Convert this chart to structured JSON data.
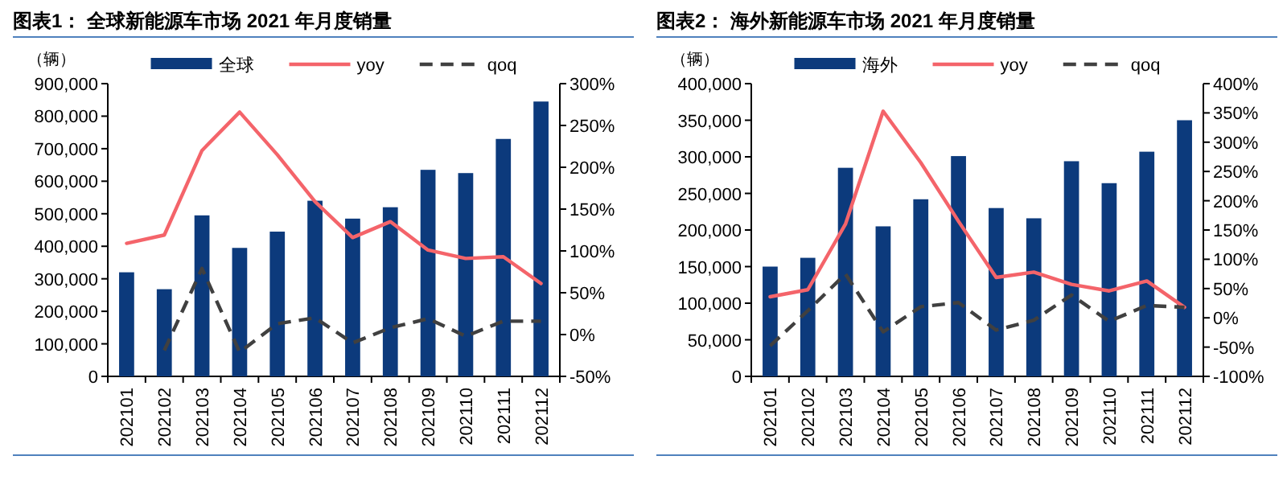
{
  "chart_data": [
    {
      "type": "bar",
      "title": "图表1：  全球新能源车市场 2021 年月度销量",
      "ylabel": "（辆）",
      "legend": "top",
      "categories": [
        "202101",
        "202102",
        "202103",
        "202104",
        "202105",
        "202106",
        "202107",
        "202108",
        "202109",
        "202110",
        "202111",
        "202112"
      ],
      "series": [
        {
          "name": "全球",
          "color": "#0c3a7c",
          "values": [
            320000,
            268000,
            495000,
            395000,
            445000,
            540000,
            485000,
            520000,
            635000,
            625000,
            730000,
            845000
          ]
        },
        {
          "name": "yoy",
          "type": "line",
          "axis": "y2",
          "line_style": "solid",
          "color": "#f4646a",
          "values": [
            109,
            119,
            220,
            266,
            215,
            159,
            116,
            135,
            101,
            91,
            93,
            61
          ]
        },
        {
          "name": "qoq",
          "type": "line",
          "axis": "y2",
          "line_style": "dashed",
          "color": "#404040",
          "values": [
            null,
            -19,
            79,
            -21,
            13,
            20,
            -10,
            8,
            19,
            -2,
            16,
            16
          ]
        }
      ],
      "ylim": [
        0,
        900000
      ],
      "yticks": [
        {
          "value": 0,
          "label": "0"
        },
        {
          "value": 100000,
          "label": "100,000"
        },
        {
          "value": 200000,
          "label": "200,000"
        },
        {
          "value": 300000,
          "label": "300,000"
        },
        {
          "value": 400000,
          "label": "400,000"
        },
        {
          "value": 500000,
          "label": "500,000"
        },
        {
          "value": 600000,
          "label": "600,000"
        },
        {
          "value": 700000,
          "label": "700,000"
        },
        {
          "value": 800000,
          "label": "800,000"
        },
        {
          "value": 900000,
          "label": "900,000"
        }
      ],
      "y2lim": [
        -50,
        300
      ],
      "y2ticks": [
        {
          "value": -50,
          "label": "-50%"
        },
        {
          "value": 0,
          "label": "0%"
        },
        {
          "value": 50,
          "label": "50%"
        },
        {
          "value": 100,
          "label": "100%"
        },
        {
          "value": 150,
          "label": "150%"
        },
        {
          "value": 200,
          "label": "200%"
        },
        {
          "value": 250,
          "label": "250%"
        },
        {
          "value": 300,
          "label": "300%"
        }
      ]
    },
    {
      "type": "bar",
      "title": "图表2：  海外新能源车市场 2021 年月度销量",
      "ylabel": "（辆）",
      "legend": "top",
      "categories": [
        "202101",
        "202102",
        "202103",
        "202104",
        "202105",
        "202106",
        "202107",
        "202108",
        "202109",
        "202110",
        "202111",
        "202112"
      ],
      "series": [
        {
          "name": "海外",
          "color": "#0c3a7c",
          "values": [
            150000,
            162000,
            285000,
            205000,
            242000,
            301000,
            230000,
            216000,
            294000,
            264000,
            307000,
            350000
          ]
        },
        {
          "name": "yoy",
          "type": "line",
          "axis": "y2",
          "line_style": "solid",
          "color": "#f4646a",
          "values": [
            36,
            48,
            160,
            353,
            265,
            165,
            69,
            78,
            57,
            46,
            63,
            18
          ]
        },
        {
          "name": "qoq",
          "type": "line",
          "axis": "y2",
          "line_style": "dashed",
          "color": "#404040",
          "values": [
            -48,
            12,
            75,
            -24,
            19,
            26,
            -21,
            -4,
            39,
            -6,
            21,
            18
          ]
        }
      ],
      "ylim": [
        0,
        400000
      ],
      "yticks": [
        {
          "value": 0,
          "label": "0"
        },
        {
          "value": 50000,
          "label": "50,000"
        },
        {
          "value": 100000,
          "label": "100,000"
        },
        {
          "value": 150000,
          "label": "150,000"
        },
        {
          "value": 200000,
          "label": "200,000"
        },
        {
          "value": 250000,
          "label": "250,000"
        },
        {
          "value": 300000,
          "label": "300,000"
        },
        {
          "value": 350000,
          "label": "350,000"
        },
        {
          "value": 400000,
          "label": "400,000"
        }
      ],
      "y2lim": [
        -100,
        400
      ],
      "y2ticks": [
        {
          "value": -100,
          "label": "-100%"
        },
        {
          "value": -50,
          "label": "-50%"
        },
        {
          "value": 0,
          "label": "0%"
        },
        {
          "value": 50,
          "label": "50%"
        },
        {
          "value": 100,
          "label": "100%"
        },
        {
          "value": 150,
          "label": "150%"
        },
        {
          "value": 200,
          "label": "200%"
        },
        {
          "value": 250,
          "label": "250%"
        },
        {
          "value": 300,
          "label": "300%"
        },
        {
          "value": 350,
          "label": "350%"
        },
        {
          "value": 400,
          "label": "400%"
        }
      ]
    }
  ]
}
